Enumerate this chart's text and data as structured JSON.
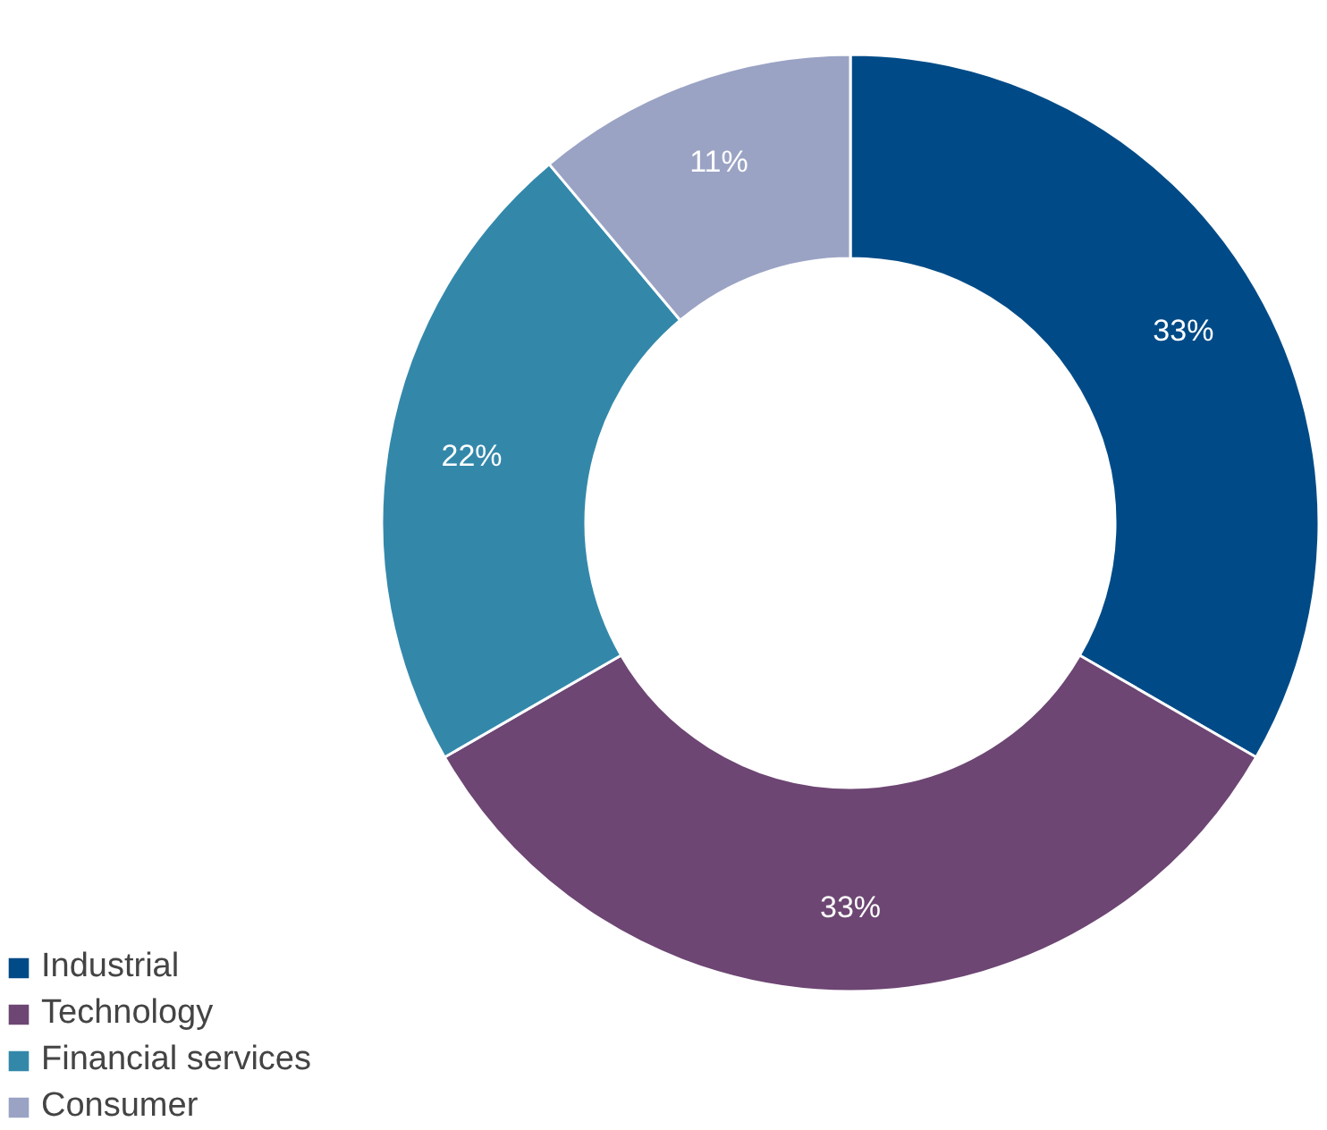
{
  "chart_data": {
    "type": "donut",
    "categories": [
      "Industrial",
      "Technology",
      "Financial services",
      "Consumer"
    ],
    "values": [
      33,
      33,
      22,
      11
    ],
    "colors": [
      "#004b87",
      "#6d4673",
      "#3388aa",
      "#9aa3c4"
    ],
    "value_labels": [
      "33%",
      "33%",
      "22%",
      "11%"
    ],
    "legend": "bottom left"
  }
}
